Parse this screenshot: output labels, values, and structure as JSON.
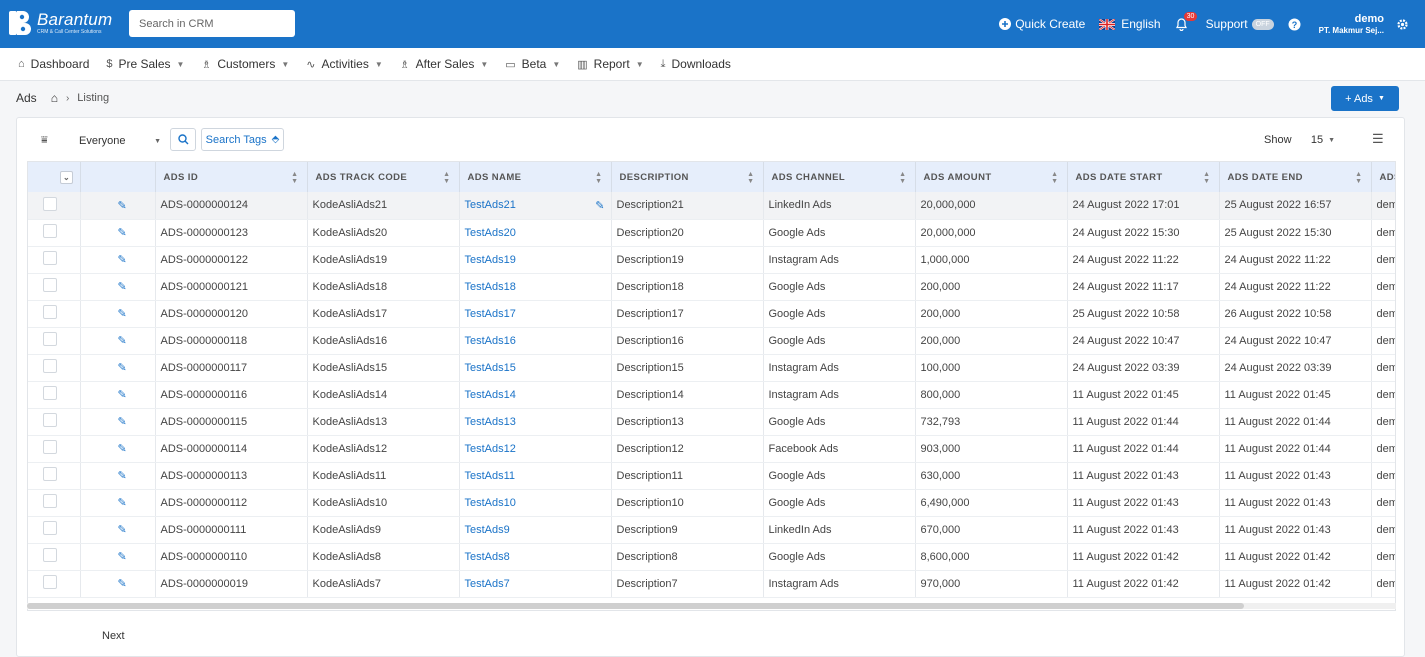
{
  "brand": {
    "name": "Barantum",
    "tagline": "CRM & Call Center Solutions"
  },
  "header": {
    "search_placeholder": "Search in CRM",
    "quick_create": "Quick Create",
    "language": "English",
    "notification_count": "30",
    "support": "Support",
    "support_status": "OFF",
    "user_name": "demo",
    "user_company": "PT. Makmur Sej..."
  },
  "menu": [
    {
      "label": "Dashboard",
      "icon": "home-icon"
    },
    {
      "label": "Pre Sales",
      "icon": "dollar-icon"
    },
    {
      "label": "Customers",
      "icon": "users-icon"
    },
    {
      "label": "Activities",
      "icon": "activity-icon"
    },
    {
      "label": "After Sales",
      "icon": "users-icon"
    },
    {
      "label": "Beta",
      "icon": "folder-icon"
    },
    {
      "label": "Report",
      "icon": "chart-icon"
    },
    {
      "label": "Downloads",
      "icon": "download-icon"
    }
  ],
  "breadcrumb": {
    "module": "Ads",
    "current": "Listing"
  },
  "add_button": "+ Ads",
  "toolbar": {
    "owner_filter": "Everyone",
    "search_tags": "Search Tags",
    "show_label": "Show",
    "page_size": "15"
  },
  "table": {
    "columns": [
      "ADS ID",
      "ADS TRACK CODE",
      "ADS NAME",
      "DESCRIPTION",
      "ADS CHANNEL",
      "ADS AMOUNT",
      "ADS DATE START",
      "ADS DATE END",
      "ADS"
    ],
    "rows": [
      [
        "ADS-0000000124",
        "KodeAsliAds21",
        "TestAds21",
        "Description21",
        "LinkedIn Ads",
        "20,000,000",
        "24 August 2022 17:01",
        "25 August 2022 16:57",
        "dem"
      ],
      [
        "ADS-0000000123",
        "KodeAsliAds20",
        "TestAds20",
        "Description20",
        "Google Ads",
        "20,000,000",
        "24 August 2022 15:30",
        "25 August 2022 15:30",
        "dem"
      ],
      [
        "ADS-0000000122",
        "KodeAsliAds19",
        "TestAds19",
        "Description19",
        "Instagram Ads",
        "1,000,000",
        "24 August 2022 11:22",
        "24 August 2022 11:22",
        "dem"
      ],
      [
        "ADS-0000000121",
        "KodeAsliAds18",
        "TestAds18",
        "Description18",
        "Google Ads",
        "200,000",
        "24 August 2022 11:17",
        "24 August 2022 11:22",
        "dem"
      ],
      [
        "ADS-0000000120",
        "KodeAsliAds17",
        "TestAds17",
        "Description17",
        "Google Ads",
        "200,000",
        "25 August 2022 10:58",
        "26 August 2022 10:58",
        "dem"
      ],
      [
        "ADS-0000000118",
        "KodeAsliAds16",
        "TestAds16",
        "Description16",
        "Google Ads",
        "200,000",
        "24 August 2022 10:47",
        "24 August 2022 10:47",
        "dem"
      ],
      [
        "ADS-0000000117",
        "KodeAsliAds15",
        "TestAds15",
        "Description15",
        "Instagram Ads",
        "100,000",
        "24 August 2022 03:39",
        "24 August 2022 03:39",
        "dem"
      ],
      [
        "ADS-0000000116",
        "KodeAsliAds14",
        "TestAds14",
        "Description14",
        "Instagram Ads",
        "800,000",
        "11 August 2022 01:45",
        "11 August 2022 01:45",
        "dem"
      ],
      [
        "ADS-0000000115",
        "KodeAsliAds13",
        "TestAds13",
        "Description13",
        "Google Ads",
        "732,793",
        "11 August 2022 01:44",
        "11 August 2022 01:44",
        "dem"
      ],
      [
        "ADS-0000000114",
        "KodeAsliAds12",
        "TestAds12",
        "Description12",
        "Facebook Ads",
        "903,000",
        "11 August 2022 01:44",
        "11 August 2022 01:44",
        "dem"
      ],
      [
        "ADS-0000000113",
        "KodeAsliAds11",
        "TestAds11",
        "Description11",
        "Google Ads",
        "630,000",
        "11 August 2022 01:43",
        "11 August 2022 01:43",
        "dem"
      ],
      [
        "ADS-0000000112",
        "KodeAsliAds10",
        "TestAds10",
        "Description10",
        "Google Ads",
        "6,490,000",
        "11 August 2022 01:43",
        "11 August 2022 01:43",
        "dem"
      ],
      [
        "ADS-0000000111",
        "KodeAsliAds9",
        "TestAds9",
        "Description9",
        "LinkedIn Ads",
        "670,000",
        "11 August 2022 01:43",
        "11 August 2022 01:43",
        "dem"
      ],
      [
        "ADS-0000000110",
        "KodeAsliAds8",
        "TestAds8",
        "Description8",
        "Google Ads",
        "8,600,000",
        "11 August 2022 01:42",
        "11 August 2022 01:42",
        "dem"
      ],
      [
        "ADS-0000000019",
        "KodeAsliAds7",
        "TestAds7",
        "Description7",
        "Instagram Ads",
        "970,000",
        "11 August 2022 01:42",
        "11 August 2022 01:42",
        "dem"
      ]
    ]
  },
  "pagination": {
    "next": "Next"
  },
  "colors": {
    "primary": "#1a73c8",
    "header_bg": "#e6eefb"
  }
}
